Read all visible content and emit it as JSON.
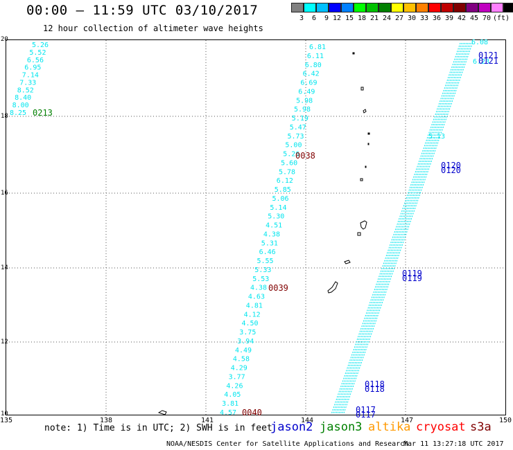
{
  "title": "00:00 – 11:59 UTC 03/10/2017",
  "subtitle": "12 hour collection of altimeter wave heights",
  "scale": {
    "colors": [
      "#808080",
      "#00ffff",
      "#00bfff",
      "#0000ff",
      "#0080ff",
      "#00ff00",
      "#00c000",
      "#008000",
      "#ffff00",
      "#ffc000",
      "#ff8000",
      "#ff0000",
      "#c00000",
      "#800000",
      "#800080",
      "#c000c0",
      "#ff80ff",
      "#000000"
    ],
    "labels": [
      "3",
      "6",
      "9",
      "12",
      "15",
      "18",
      "21",
      "24",
      "27",
      "30",
      "33",
      "36",
      "39",
      "42",
      "45",
      "70",
      "(ft)"
    ]
  },
  "axes": {
    "lat_labels": [
      "20",
      "18",
      "16",
      "14",
      "12",
      "10"
    ],
    "lon_labels": [
      "135",
      "138",
      "141",
      "144",
      "147",
      "150"
    ]
  },
  "track_colors": {
    "jason2": "#0000cc",
    "jason3": "#008000",
    "altika": "#ff9900",
    "cryosat": "#ff0000",
    "s3a": "#800000",
    "swh": "#00e5ee"
  },
  "track_labels": {
    "t0213": "0213",
    "t0038": "0038",
    "t0039": "0039",
    "t0040": "0040",
    "t0121": "0121",
    "t0120": "0120",
    "t0119": "0119",
    "t0118": "0118",
    "t0117": "0117"
  },
  "swh_left": [
    "5.26",
    "5.52",
    "6.56",
    "6.95",
    "7.14",
    "7.33",
    "8.52",
    "8.40",
    "8.00",
    "8.25"
  ],
  "swh_middle": [
    "6.81",
    "6.11",
    "6.80",
    "6.42",
    "6.69",
    "6.49",
    "5.98",
    "5.98",
    "5.19",
    "5.47",
    "5.73",
    "5.00",
    "5.26",
    "5.60",
    "5.78",
    "6.12",
    "5.85",
    "5.06",
    "5.14",
    "5.30",
    "4.51",
    "4.38",
    "5.31",
    "6.46",
    "5.55",
    "5.33",
    "5.53",
    "4.38",
    "4.63",
    "4.81",
    "4.12",
    "4.50",
    "3.75",
    "3.94",
    "4.49",
    "4.58",
    "4.29",
    "3.77",
    "4.26",
    "4.05",
    "3.81",
    "4.57"
  ],
  "swh_right_top": [
    "6.08",
    "6.23"
  ],
  "swh_right_mid": [
    "5.13"
  ],
  "note": "note: 1) Time is in UTC; 2) SWH is in feet",
  "legend": {
    "jason2": "jason2",
    "jason3": "jason3",
    "altika": "altika",
    "cryosat": "cryosat",
    "s3a": "s3a"
  },
  "credit": "NOAA/NESDIS Center for Satellite Applications and Research",
  "timestamp": "Mar 11 13:27:18 UTC 2017"
}
